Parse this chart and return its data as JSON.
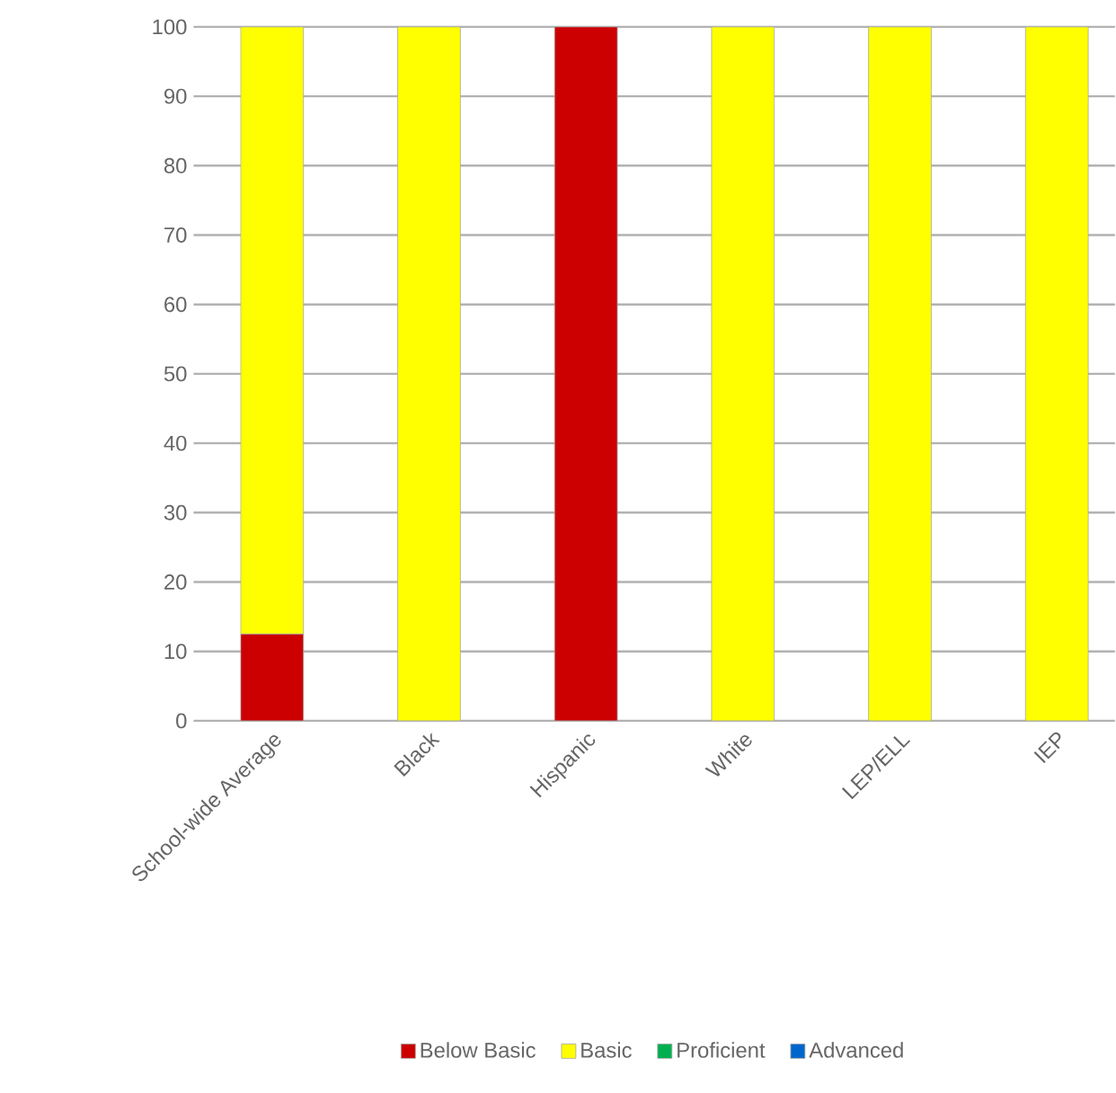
{
  "chart_data": {
    "type": "bar",
    "stacked": true,
    "categories": [
      "School-wide Average",
      "Black",
      "Hispanic",
      "White",
      "LEP/ELL",
      "IEP"
    ],
    "series": [
      {
        "name": "Below Basic",
        "color": "#cc0000",
        "values": [
          12.5,
          0,
          100,
          0,
          0,
          0
        ]
      },
      {
        "name": "Basic",
        "color": "#ffff00",
        "values": [
          87.5,
          100,
          0,
          100,
          100,
          100
        ]
      },
      {
        "name": "Proficient",
        "color": "#00b050",
        "values": [
          0,
          0,
          0,
          0,
          0,
          0
        ]
      },
      {
        "name": "Advanced",
        "color": "#0066cc",
        "values": [
          0,
          0,
          0,
          0,
          0,
          0
        ]
      }
    ],
    "ylim": [
      0,
      100
    ],
    "yticks": [
      0,
      10,
      20,
      30,
      40,
      50,
      60,
      70,
      80,
      90,
      100
    ],
    "grid": "y",
    "legend": "bottom"
  }
}
